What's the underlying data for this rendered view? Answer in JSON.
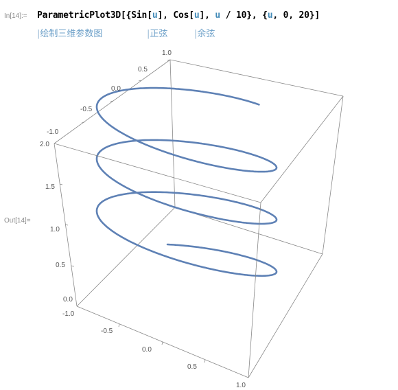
{
  "cell": {
    "in_label": "In[14]:=",
    "out_label": "Out[14]=",
    "code": {
      "fn": "ParametricPlot3D",
      "arg1_open": "[{",
      "sin": "Sin",
      "u1": "u",
      "sep1": "], ",
      "cos": "Cos",
      "u2": "u",
      "sep2": "], ",
      "u3": "u",
      "div": " / 10}, {",
      "u4": "u",
      "range": ", 0, 20}]"
    },
    "hints": [
      {
        "bar": "|",
        "text": "绘制三维参数图"
      },
      {
        "bar": "|",
        "text": "正弦"
      },
      {
        "bar": "|",
        "text": "余弦"
      }
    ]
  },
  "plot": {
    "curve_color": "#5e81b5",
    "box_color": "#888888",
    "axis_ticks": {
      "y_axis_top": [
        "1.0",
        "0.5",
        "0.0",
        "-0.5",
        "-1.0"
      ],
      "z_axis_left": [
        "2.0",
        "1.5",
        "1.0",
        "0.5",
        "0.0"
      ],
      "x_axis_bottom": [
        "-1.0",
        "-0.5",
        "0.0",
        "0.5",
        "1.0"
      ]
    }
  }
}
